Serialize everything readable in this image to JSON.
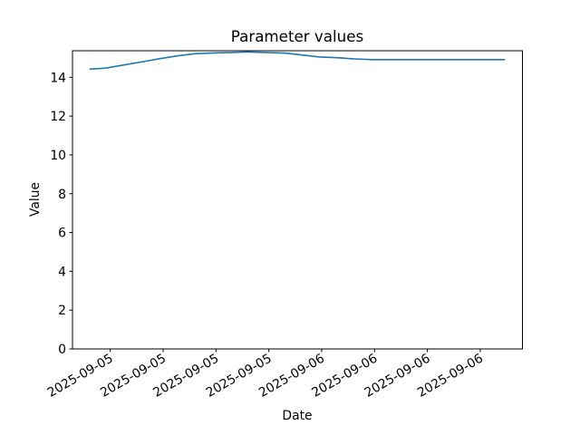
{
  "chart_data": {
    "type": "line",
    "title": "Parameter values",
    "xlabel": "Date",
    "ylabel": "Value",
    "grid": false,
    "legend": null,
    "background_color": "#ffffff",
    "ylim": [
      0,
      15.37
    ],
    "y_ticks": [
      0,
      2,
      4,
      6,
      8,
      10,
      12,
      14
    ],
    "x_ticks": [
      {
        "pos": 0.084,
        "label": "2025-09-05"
      },
      {
        "pos": 0.2015,
        "label": "2025-09-05"
      },
      {
        "pos": 0.3189,
        "label": "2025-09-05"
      },
      {
        "pos": 0.4364,
        "label": "2025-09-05"
      },
      {
        "pos": 0.5538,
        "label": "2025-09-06"
      },
      {
        "pos": 0.6713,
        "label": "2025-09-06"
      },
      {
        "pos": 0.7887,
        "label": "2025-09-06"
      },
      {
        "pos": 0.9062,
        "label": "2025-09-06"
      }
    ],
    "x_tick_rotation_deg": 30,
    "series": [
      {
        "name": "Parameter values",
        "color": "#1f77b4",
        "points": [
          [
            0.039,
            14.42
          ],
          [
            0.075,
            14.48
          ],
          [
            0.117,
            14.65
          ],
          [
            0.157,
            14.81
          ],
          [
            0.196,
            14.97
          ],
          [
            0.236,
            15.12
          ],
          [
            0.274,
            15.22
          ],
          [
            0.314,
            15.26
          ],
          [
            0.353,
            15.28
          ],
          [
            0.387,
            15.31
          ],
          [
            0.431,
            15.28
          ],
          [
            0.472,
            15.25
          ],
          [
            0.51,
            15.15
          ],
          [
            0.548,
            15.05
          ],
          [
            0.589,
            15.01
          ],
          [
            0.627,
            14.95
          ],
          [
            0.667,
            14.91
          ],
          [
            0.706,
            14.91
          ],
          [
            0.746,
            14.91
          ],
          [
            0.786,
            14.91
          ],
          [
            0.827,
            14.91
          ],
          [
            0.867,
            14.91
          ],
          [
            0.907,
            14.91
          ],
          [
            0.96,
            14.91
          ]
        ]
      }
    ]
  }
}
